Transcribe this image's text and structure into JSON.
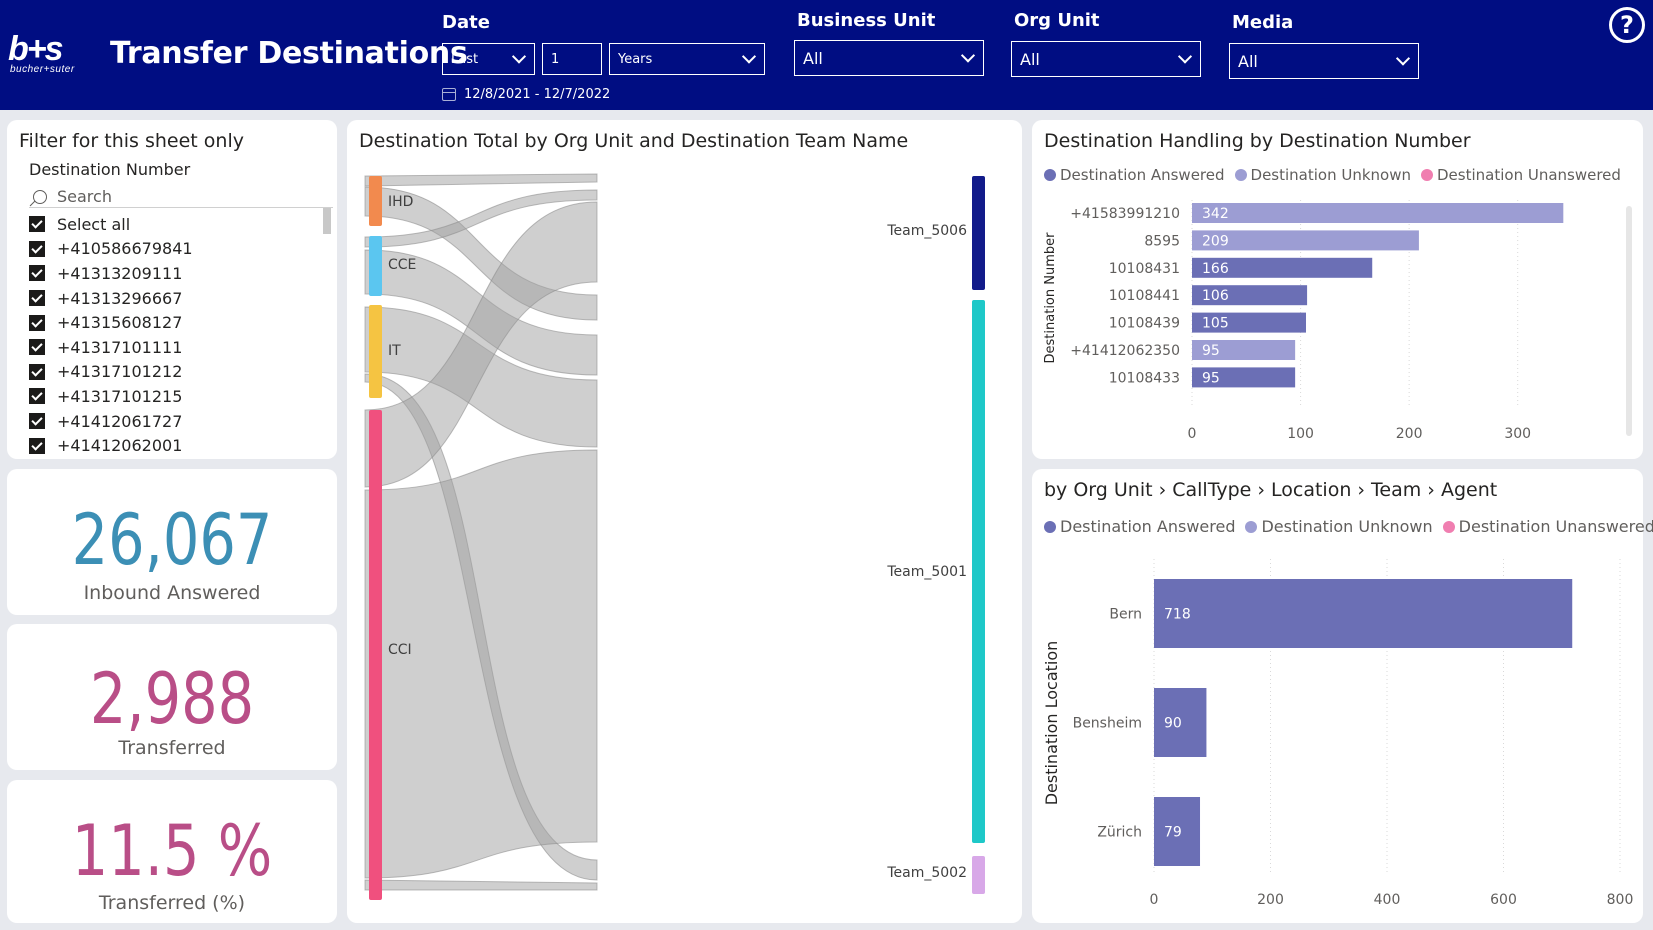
{
  "header": {
    "logo_text": "b+s",
    "logo_sub": "bucher+suter",
    "title": "Transfer Destinations",
    "date": {
      "label": "Date",
      "relative": "Last",
      "count": "1",
      "unit": "Years",
      "range": "12/8/2021 - 12/7/2022"
    },
    "business_unit": {
      "label": "Business Unit",
      "value": "All"
    },
    "org_unit": {
      "label": "Org Unit",
      "value": "All"
    },
    "media": {
      "label": "Media",
      "value": "All"
    },
    "help_glyph": "?"
  },
  "slicer": {
    "title": "Filter for this sheet only",
    "field": "Destination Number",
    "search_placeholder": "Search",
    "items": [
      "Select all",
      "+410586679841",
      "+41313209111",
      "+41313296667",
      "+41315608127",
      "+41317101111",
      "+41317101212",
      "+41317101215",
      "+41412061727",
      "+41412062001"
    ]
  },
  "kpis": [
    {
      "value": "26,067",
      "label": "Inbound Answered",
      "color": "#3c8fb5"
    },
    {
      "value": "2,988",
      "label": "Transferred",
      "color": "#b94e87"
    },
    {
      "value": "11.5 %",
      "label": "Transferred (%)",
      "color": "#b94e87"
    }
  ],
  "sankey": {
    "title": "Destination Total by Org Unit and Destination Team Name",
    "sources": [
      {
        "name": "IHD",
        "color": "#f28a4e"
      },
      {
        "name": "CCE",
        "color": "#5bc6f0"
      },
      {
        "name": "IT",
        "color": "#f5c442"
      },
      {
        "name": "CCI",
        "color": "#f0507e"
      }
    ],
    "targets": [
      {
        "name": "Team_5006",
        "color": "#121b8a"
      },
      {
        "name": "Team_5001",
        "color": "#1ec8c8"
      },
      {
        "name": "Team_5002",
        "color": "#d8a8e8"
      }
    ]
  },
  "colors": {
    "answered": "#6b6fb5",
    "unknown": "#9c9dd3",
    "unanswered": "#f07eb0"
  },
  "chart_data": [
    {
      "type": "bar",
      "orientation": "horizontal",
      "title": "Destination Handling by Destination Number",
      "legend": [
        "Destination Answered",
        "Destination Unknown",
        "Destination Unanswered"
      ],
      "ylabel": "Destination Number",
      "categories": [
        "+41583991210",
        "8595",
        "10108431",
        "10108441",
        "10108439",
        "+41412062350",
        "10108433"
      ],
      "values": [
        342,
        209,
        166,
        106,
        105,
        95,
        95
      ],
      "series_of_bar": [
        "Destination Unknown",
        "Destination Unknown",
        "Destination Answered",
        "Destination Answered",
        "Destination Answered",
        "Destination Unknown",
        "Destination Answered"
      ],
      "xlim": [
        0,
        350
      ],
      "xticks": [
        0,
        100,
        200,
        300
      ]
    },
    {
      "type": "bar",
      "orientation": "horizontal",
      "title": "by Org Unit › CallType › Location › Team › Agent",
      "legend": [
        "Destination Answered",
        "Destination Unknown",
        "Destination Unanswered"
      ],
      "ylabel": "Destination Location",
      "categories": [
        "Bern",
        "Bensheim",
        "Zürich"
      ],
      "values": [
        718,
        90,
        79
      ],
      "xlim": [
        0,
        800
      ],
      "xticks": [
        0,
        200,
        400,
        600,
        800
      ]
    }
  ]
}
